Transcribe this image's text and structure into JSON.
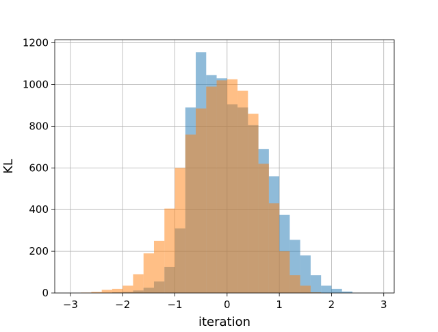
{
  "chart_data": {
    "type": "bar",
    "subtype": "overlapping-histogram",
    "xlabel": "iteration",
    "ylabel": "KL",
    "xlim": [
      -3.3,
      3.2
    ],
    "ylim": [
      0,
      1215
    ],
    "xticks": [
      -3,
      -2,
      -1,
      0,
      1,
      2,
      3
    ],
    "xtick_labels": [
      "−3",
      "−2",
      "−1",
      "0",
      "1",
      "2",
      "3"
    ],
    "yticks": [
      0,
      200,
      400,
      600,
      800,
      1000,
      1200
    ],
    "ytick_labels": [
      "0",
      "200",
      "400",
      "600",
      "800",
      "1000",
      "1200"
    ],
    "grid": true,
    "legend": false,
    "series": [
      {
        "color": "#1f77b4",
        "opacity": 0.5,
        "bins": [
          {
            "x0": -2.2,
            "x1": -2.0,
            "value": 3
          },
          {
            "x0": -2.0,
            "x1": -1.8,
            "value": 5
          },
          {
            "x0": -1.8,
            "x1": -1.6,
            "value": 12
          },
          {
            "x0": -1.6,
            "x1": -1.4,
            "value": 25
          },
          {
            "x0": -1.4,
            "x1": -1.2,
            "value": 55
          },
          {
            "x0": -1.2,
            "x1": -1.0,
            "value": 125
          },
          {
            "x0": -1.0,
            "x1": -0.8,
            "value": 310
          },
          {
            "x0": -0.8,
            "x1": -0.6,
            "value": 890
          },
          {
            "x0": -0.6,
            "x1": -0.4,
            "value": 1155
          },
          {
            "x0": -0.4,
            "x1": -0.2,
            "value": 1045
          },
          {
            "x0": -0.2,
            "x1": 0.0,
            "value": 1030
          },
          {
            "x0": 0.0,
            "x1": 0.2,
            "value": 905
          },
          {
            "x0": 0.2,
            "x1": 0.4,
            "value": 890
          },
          {
            "x0": 0.4,
            "x1": 0.6,
            "value": 805
          },
          {
            "x0": 0.6,
            "x1": 0.8,
            "value": 690
          },
          {
            "x0": 0.8,
            "x1": 1.0,
            "value": 560
          },
          {
            "x0": 1.0,
            "x1": 1.2,
            "value": 375
          },
          {
            "x0": 1.2,
            "x1": 1.4,
            "value": 255
          },
          {
            "x0": 1.4,
            "x1": 1.6,
            "value": 180
          },
          {
            "x0": 1.6,
            "x1": 1.8,
            "value": 85
          },
          {
            "x0": 1.8,
            "x1": 2.0,
            "value": 35
          },
          {
            "x0": 2.0,
            "x1": 2.2,
            "value": 20
          },
          {
            "x0": 2.2,
            "x1": 2.4,
            "value": 7
          }
        ]
      },
      {
        "color": "#ff7f0e",
        "opacity": 0.5,
        "bins": [
          {
            "x0": -2.8,
            "x1": -2.6,
            "value": 2
          },
          {
            "x0": -2.6,
            "x1": -2.4,
            "value": 5
          },
          {
            "x0": -2.4,
            "x1": -2.2,
            "value": 15
          },
          {
            "x0": -2.2,
            "x1": -2.0,
            "value": 20
          },
          {
            "x0": -2.0,
            "x1": -1.8,
            "value": 35
          },
          {
            "x0": -1.8,
            "x1": -1.6,
            "value": 90
          },
          {
            "x0": -1.6,
            "x1": -1.4,
            "value": 190
          },
          {
            "x0": -1.4,
            "x1": -1.2,
            "value": 250
          },
          {
            "x0": -1.2,
            "x1": -1.0,
            "value": 405
          },
          {
            "x0": -1.0,
            "x1": -0.8,
            "value": 600
          },
          {
            "x0": -0.8,
            "x1": -0.6,
            "value": 760
          },
          {
            "x0": -0.6,
            "x1": -0.4,
            "value": 885
          },
          {
            "x0": -0.4,
            "x1": -0.2,
            "value": 990
          },
          {
            "x0": -0.2,
            "x1": 0.0,
            "value": 1020
          },
          {
            "x0": 0.0,
            "x1": 0.2,
            "value": 1025
          },
          {
            "x0": 0.2,
            "x1": 0.4,
            "value": 970
          },
          {
            "x0": 0.4,
            "x1": 0.6,
            "value": 860
          },
          {
            "x0": 0.6,
            "x1": 0.8,
            "value": 620
          },
          {
            "x0": 0.8,
            "x1": 1.0,
            "value": 430
          },
          {
            "x0": 1.0,
            "x1": 1.2,
            "value": 200
          },
          {
            "x0": 1.2,
            "x1": 1.4,
            "value": 85
          },
          {
            "x0": 1.4,
            "x1": 1.6,
            "value": 35
          },
          {
            "x0": 1.6,
            "x1": 1.8,
            "value": 3
          }
        ]
      }
    ]
  }
}
